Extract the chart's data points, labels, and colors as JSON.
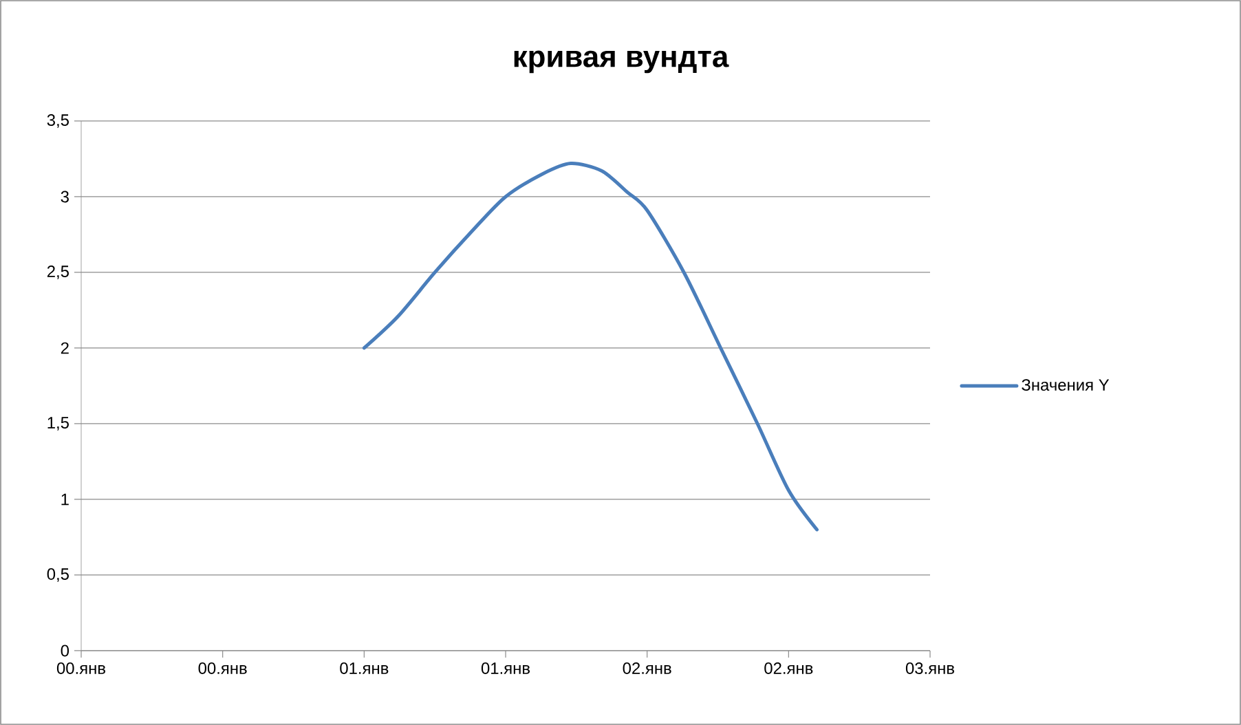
{
  "chart_data": {
    "type": "line",
    "title": "кривая вундта",
    "series": [
      {
        "name": "Значения Y",
        "color": "#4a7ebb",
        "x": [
          1,
          1.12,
          1.25,
          1.38,
          1.5,
          1.63,
          1.73,
          1.84,
          1.93,
          2.0,
          2.13,
          2.26,
          2.39,
          2.5,
          2.6
        ],
        "values": [
          2.0,
          2.21,
          2.5,
          2.77,
          3.0,
          3.15,
          3.22,
          3.17,
          3.03,
          2.91,
          2.5,
          2.0,
          1.5,
          1.06,
          0.8
        ]
      }
    ],
    "xlim": [
      0,
      3
    ],
    "xticks": [
      {
        "value": 0,
        "label": "00.янв"
      },
      {
        "value": 0.5,
        "label": "00.янв"
      },
      {
        "value": 1,
        "label": "01.янв"
      },
      {
        "value": 1.5,
        "label": "01.янв"
      },
      {
        "value": 2,
        "label": "02.янв"
      },
      {
        "value": 2.5,
        "label": "02.янв"
      },
      {
        "value": 3,
        "label": "03.янв"
      }
    ],
    "ylim": [
      0,
      3.5
    ],
    "yticks": [
      0,
      {
        "value": 0.5,
        "label": "0,5"
      },
      1,
      {
        "value": 1.5,
        "label": "1,5"
      },
      2,
      {
        "value": 2.5,
        "label": "2,5"
      },
      3,
      {
        "value": 3.5,
        "label": "3,5"
      }
    ],
    "grid": "y",
    "legend": "right",
    "marker": "none",
    "line_style": "solid"
  }
}
